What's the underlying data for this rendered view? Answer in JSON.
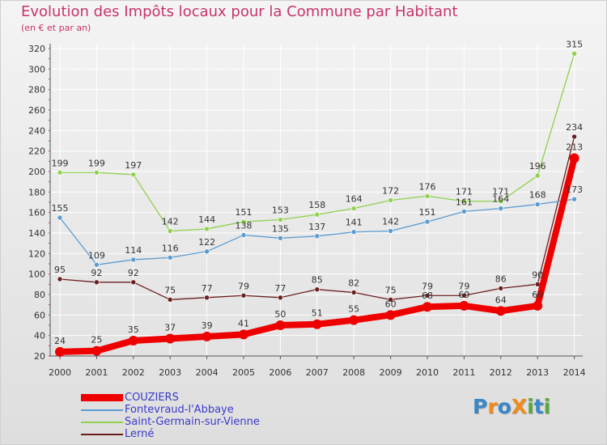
{
  "title": "Evolution des Impôts locaux pour la Commune par Habitant",
  "subtitle": "(en € et par an)",
  "logo": {
    "text": "ProXiti",
    "letters": [
      "P",
      "r",
      "o",
      "X",
      "i",
      "t",
      "i"
    ],
    "colors": [
      "#3a87c8",
      "#f08a1c",
      "#3a87c8",
      "#f08a1c",
      "#5aa83a",
      "#3a87c8",
      "#5aa83a"
    ]
  },
  "chart_data": {
    "type": "line",
    "title": "Evolution des Impôts locaux pour la Commune par Habitant",
    "ylabel": "",
    "xlabel": "",
    "x": [
      "2000",
      "2001",
      "2002",
      "2003",
      "2004",
      "2005",
      "2006",
      "2007",
      "2008",
      "2009",
      "2010",
      "2011",
      "2012",
      "2013",
      "2014"
    ],
    "ylim": [
      20,
      320
    ],
    "yticks": [
      "20",
      "40",
      "60",
      "80",
      "100",
      "120",
      "140",
      "160",
      "180",
      "200",
      "220",
      "240",
      "260",
      "280",
      "300",
      "320"
    ],
    "grid": true,
    "legend_position": "bottom-left",
    "series": [
      {
        "name": "Lerné",
        "color": "#6b1e1e",
        "values": [
          95,
          92,
          92,
          75,
          77,
          79,
          77,
          85,
          82,
          75,
          79,
          79,
          86,
          90,
          234
        ],
        "labels": [
          "95",
          "92",
          "92",
          "75",
          "77",
          "79",
          "77",
          "85",
          "82",
          "75",
          "79",
          "79",
          "86",
          "90",
          "234"
        ]
      },
      {
        "name": "Saint-Germain-sur-Vienne",
        "color": "#8fd14f",
        "values": [
          199,
          199,
          197,
          142,
          144,
          151,
          153,
          158,
          164,
          172,
          176,
          171,
          171,
          196,
          315
        ],
        "labels": [
          "199",
          "199",
          "197",
          "142",
          "144",
          "151",
          "153",
          "158",
          "164",
          "172",
          "176",
          "171",
          "171",
          "196",
          "315"
        ]
      },
      {
        "name": "Fontevraud-l'Abbaye",
        "color": "#5b9bd0",
        "values": [
          155,
          109,
          114,
          116,
          122,
          138,
          135,
          137,
          141,
          142,
          151,
          161,
          164,
          168,
          173
        ],
        "labels": [
          "155",
          "109",
          "114",
          "116",
          "122",
          "138",
          "135",
          "137",
          "141",
          "142",
          "151",
          "161",
          "164",
          "168",
          "173"
        ]
      },
      {
        "name": "COUZIERS",
        "color": "#ee0000",
        "values": [
          24,
          25,
          35,
          37,
          39,
          41,
          50,
          51,
          55,
          60,
          68,
          69,
          64,
          69,
          213
        ],
        "labels": [
          "24",
          "25",
          "35",
          "37",
          "39",
          "41",
          "50",
          "51",
          "55",
          "60",
          "68",
          "69",
          "64",
          "69",
          "213"
        ]
      }
    ],
    "legend": [
      "COUZIERS",
      "Fontevraud-l'Abbaye",
      "Saint-Germain-sur-Vienne",
      "Lerné"
    ],
    "legend_colors": [
      "#ee0000",
      "#5b9bd0",
      "#8fd14f",
      "#6b1e1e"
    ],
    "legend_text_color": "#3a3acc"
  }
}
